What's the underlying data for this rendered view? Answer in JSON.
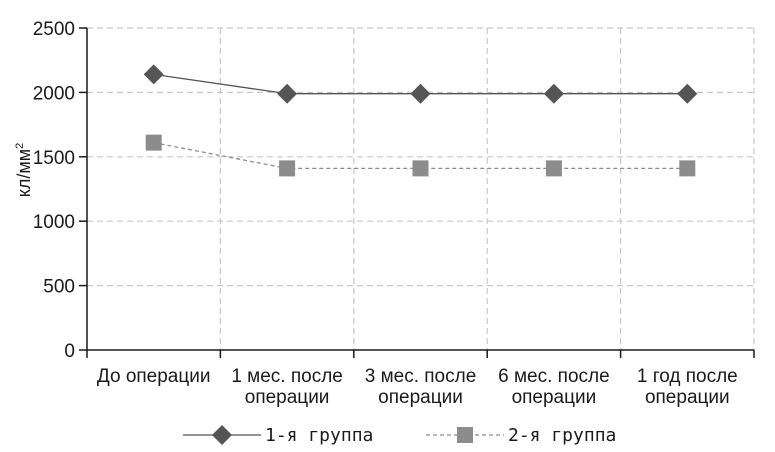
{
  "chart_data": {
    "type": "line",
    "categories": [
      [
        "До операции"
      ],
      [
        "1 мес. после",
        "операции"
      ],
      [
        "3 мес. после",
        "операции"
      ],
      [
        "6 мес. после",
        "операции"
      ],
      [
        "1 год после",
        "операции"
      ]
    ],
    "ylabel": "кл/мм",
    "ylabel_superscript": "2",
    "ylim": [
      0,
      2500
    ],
    "yticks": [
      "0",
      "500",
      "1000",
      "1500",
      "2000",
      "2500"
    ],
    "grid": true,
    "legend_position": "bottom",
    "series": [
      {
        "name": "1-я группа",
        "values": [
          2140,
          1990,
          1990,
          1990,
          1990
        ],
        "marker": "diamond",
        "line_style": "solid",
        "color": "#555555"
      },
      {
        "name": "2-я группа",
        "values": [
          1610,
          1410,
          1410,
          1410,
          1410
        ],
        "marker": "square",
        "line_style": "dashed",
        "color": "#8c8c8c"
      }
    ]
  }
}
